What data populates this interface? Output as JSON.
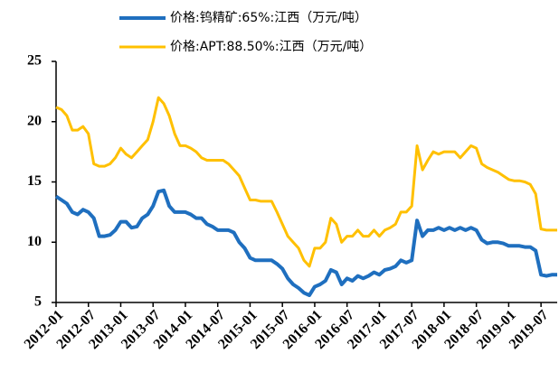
{
  "chart_data": {
    "type": "line",
    "x": [
      "2012-01",
      "2012-02",
      "2012-03",
      "2012-04",
      "2012-05",
      "2012-06",
      "2012-07",
      "2012-08",
      "2012-09",
      "2012-10",
      "2012-11",
      "2012-12",
      "2013-01",
      "2013-02",
      "2013-03",
      "2013-04",
      "2013-05",
      "2013-06",
      "2013-07",
      "2013-08",
      "2013-09",
      "2013-10",
      "2013-11",
      "2013-12",
      "2014-01",
      "2014-02",
      "2014-03",
      "2014-04",
      "2014-05",
      "2014-06",
      "2014-07",
      "2014-08",
      "2014-09",
      "2014-10",
      "2014-11",
      "2014-12",
      "2015-01",
      "2015-02",
      "2015-03",
      "2015-04",
      "2015-05",
      "2015-06",
      "2015-07",
      "2015-08",
      "2015-09",
      "2015-10",
      "2015-11",
      "2015-12",
      "2016-01",
      "2016-02",
      "2016-03",
      "2016-04",
      "2016-05",
      "2016-06",
      "2016-07",
      "2016-08",
      "2016-09",
      "2016-10",
      "2016-11",
      "2016-12",
      "2017-01",
      "2017-02",
      "2017-03",
      "2017-04",
      "2017-05",
      "2017-06",
      "2017-07",
      "2017-08",
      "2017-09",
      "2017-10",
      "2017-11",
      "2017-12",
      "2018-01",
      "2018-02",
      "2018-03",
      "2018-04",
      "2018-05",
      "2018-06",
      "2018-07",
      "2018-08",
      "2018-09",
      "2018-10",
      "2018-11",
      "2018-12",
      "2019-01",
      "2019-02",
      "2019-03",
      "2019-04",
      "2019-05",
      "2019-06",
      "2019-07",
      "2019-08",
      "2019-09",
      "2019-10"
    ],
    "series": [
      {
        "name": "价格:钨精矿:65%:江西（万元/吨）",
        "color": "#1f6fbf",
        "values": [
          13.8,
          13.5,
          13.2,
          12.5,
          12.3,
          12.7,
          12.5,
          12.0,
          10.5,
          10.5,
          10.6,
          11.0,
          11.7,
          11.7,
          11.2,
          11.3,
          12.0,
          12.3,
          13.0,
          14.2,
          14.3,
          13.0,
          12.5,
          12.5,
          12.5,
          12.3,
          12.0,
          12.0,
          11.5,
          11.3,
          11.0,
          11.0,
          11.0,
          10.8,
          10.0,
          9.5,
          8.7,
          8.5,
          8.5,
          8.5,
          8.5,
          8.2,
          7.8,
          7.0,
          6.5,
          6.2,
          5.8,
          5.6,
          6.3,
          6.5,
          6.8,
          7.7,
          7.5,
          6.5,
          7.0,
          6.8,
          7.2,
          7.0,
          7.2,
          7.5,
          7.3,
          7.7,
          7.8,
          8.0,
          8.5,
          8.3,
          8.5,
          11.8,
          10.5,
          11.0,
          11.0,
          11.2,
          11.0,
          11.2,
          11.0,
          11.2,
          11.0,
          11.2,
          11.0,
          10.2,
          9.9,
          10.0,
          10.0,
          9.9,
          9.7,
          9.7,
          9.7,
          9.6,
          9.6,
          9.3,
          7.3,
          7.2,
          7.3,
          7.3
        ]
      },
      {
        "name": "价格:APT:88.50%:江西（万元/吨）",
        "color": "#ffc000",
        "values": [
          21.2,
          21.0,
          20.5,
          19.3,
          19.3,
          19.6,
          19.0,
          16.5,
          16.3,
          16.3,
          16.5,
          17.0,
          17.8,
          17.3,
          17.0,
          17.5,
          18.0,
          18.5,
          20.0,
          22.0,
          21.5,
          20.5,
          19.0,
          18.0,
          18.0,
          17.8,
          17.5,
          17.0,
          16.8,
          16.8,
          16.8,
          16.8,
          16.5,
          16.0,
          15.5,
          14.5,
          13.5,
          13.5,
          13.4,
          13.4,
          13.4,
          12.5,
          11.5,
          10.5,
          10.0,
          9.5,
          8.5,
          8.0,
          9.5,
          9.5,
          10.0,
          12.0,
          11.5,
          10.0,
          10.5,
          10.5,
          11.0,
          10.5,
          10.5,
          11.0,
          10.5,
          11.0,
          11.2,
          11.5,
          12.5,
          12.5,
          13.0,
          18.0,
          16.0,
          16.8,
          17.5,
          17.3,
          17.5,
          17.5,
          17.5,
          17.0,
          17.5,
          18.0,
          17.8,
          16.5,
          16.2,
          16.0,
          15.8,
          15.5,
          15.2,
          15.1,
          15.1,
          15.0,
          14.8,
          14.0,
          11.1,
          11.0,
          11.0,
          11.0
        ]
      }
    ],
    "xlim": [
      "2012-01",
      "2019-10"
    ],
    "xticks": [
      "2012-01",
      "2012-07",
      "2013-01",
      "2013-07",
      "2014-01",
      "2014-07",
      "2015-01",
      "2015-07",
      "2016-01",
      "2016-07",
      "2017-01",
      "2017-07",
      "2018-01",
      "2018-07",
      "2019-01",
      "2019-07"
    ],
    "ylim": [
      5,
      25
    ],
    "yticks": [
      5,
      10,
      15,
      20,
      25
    ],
    "grid": false,
    "legend": "top"
  }
}
